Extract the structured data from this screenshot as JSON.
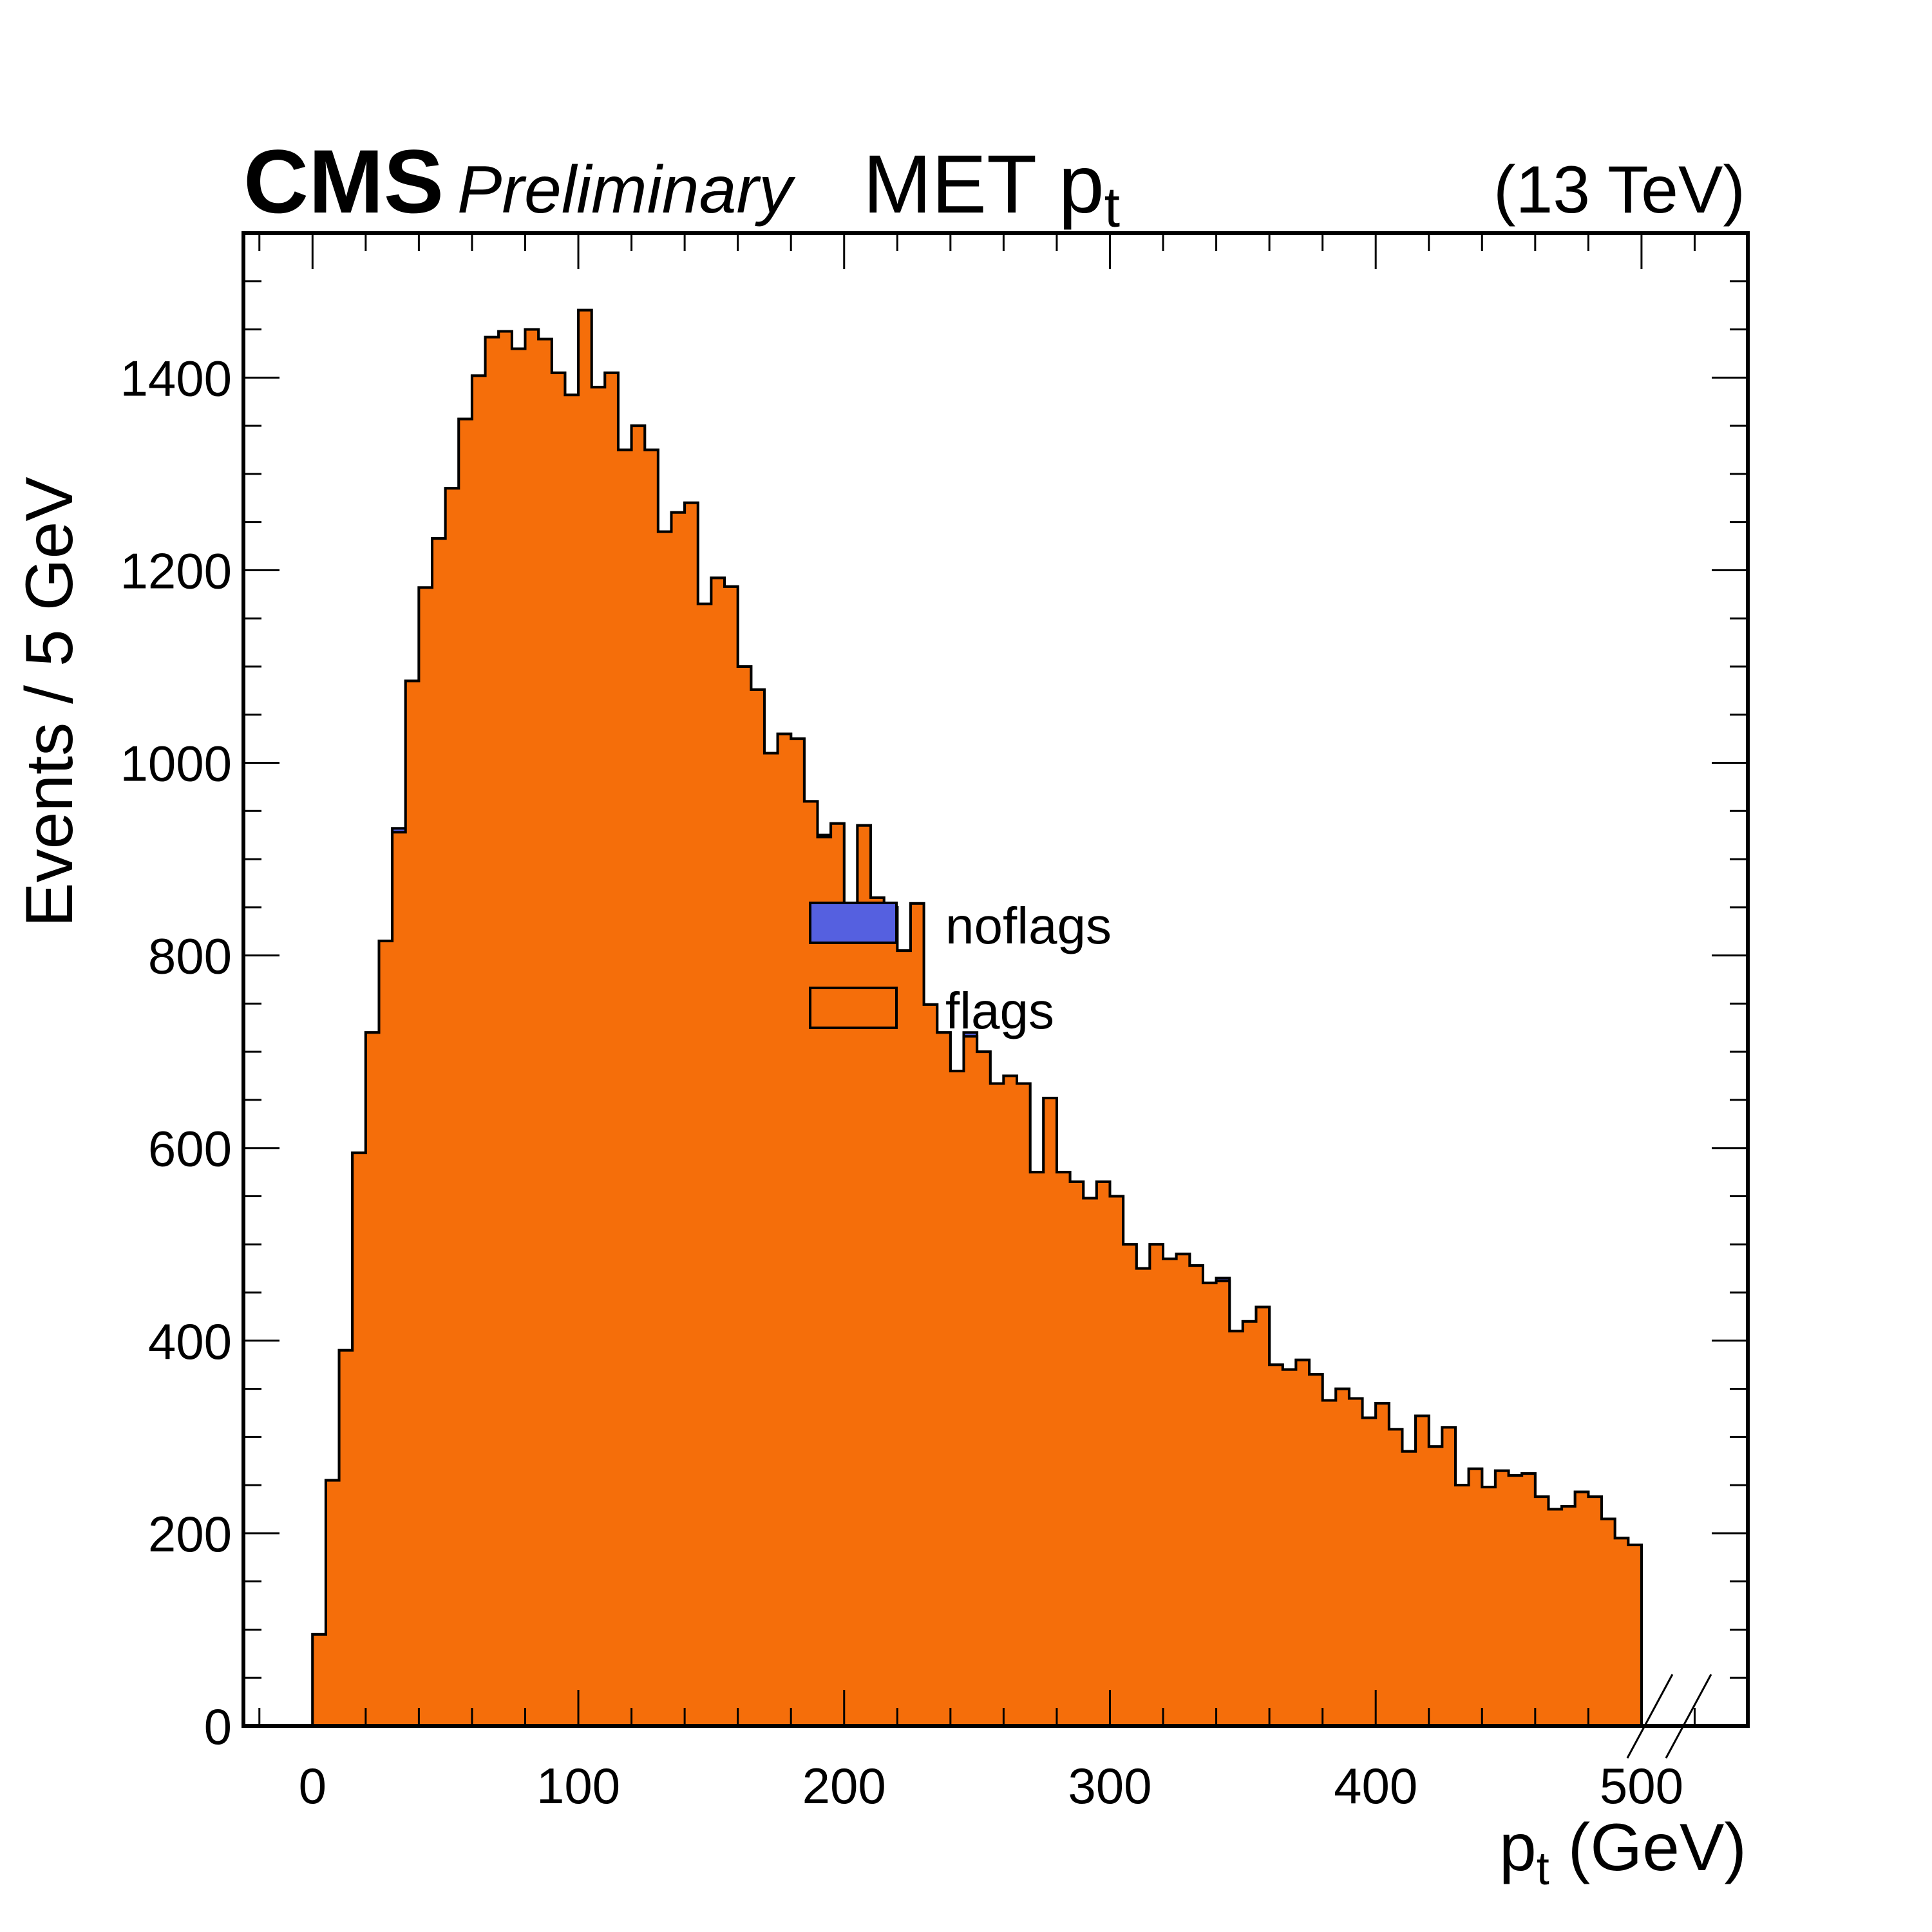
{
  "header": {
    "experiment": "CMS",
    "status": "Preliminary",
    "energy": "(13 TeV)"
  },
  "chart_data": {
    "type": "histogram",
    "title": "MET p_t",
    "title_main": "MET p",
    "title_sub": "t",
    "xlabel": "p_t (GeV)",
    "xlabel_main": "p",
    "xlabel_sub": "t",
    "xlabel_unit": " (GeV)",
    "ylabel": "Events / 5 GeV",
    "xlim": [
      -26,
      540
    ],
    "ylim": [
      0,
      1550
    ],
    "x_ticks": [
      0,
      100,
      200,
      300,
      400,
      500
    ],
    "y_ticks": [
      0,
      200,
      400,
      600,
      800,
      1000,
      1200,
      1400
    ],
    "bin_width": 5,
    "bin_range": [
      0,
      500
    ],
    "overflow_break_marks": true,
    "legend_position": "center",
    "series": [
      {
        "name": "noflags",
        "color": "#5560E0",
        "values": [
          95,
          255,
          390,
          595,
          720,
          815,
          932,
          1085,
          1182,
          1233,
          1285,
          1357,
          1402,
          1442,
          1448,
          1430,
          1450,
          1440,
          1405,
          1382,
          1470,
          1390,
          1405,
          1325,
          1350,
          1325,
          1240,
          1260,
          1270,
          1165,
          1192,
          1183,
          1100,
          1076,
          1010,
          1030,
          1025,
          960,
          925,
          937,
          850,
          935,
          860,
          850,
          805,
          854,
          749,
          720,
          680,
          720,
          700,
          667,
          675,
          667,
          575,
          652,
          575,
          565,
          548,
          565,
          550,
          500,
          475,
          500,
          485,
          490,
          478,
          460,
          465,
          410,
          420,
          435,
          375,
          370,
          380,
          365,
          338,
          350,
          340,
          320,
          335,
          308,
          285,
          322,
          290,
          310,
          250,
          267,
          248,
          265,
          260,
          262,
          238,
          225,
          228,
          243,
          238,
          215,
          195,
          188
        ]
      },
      {
        "name": "flags",
        "color": "#F56E0A",
        "values": [
          95,
          255,
          390,
          595,
          720,
          815,
          928,
          1085,
          1182,
          1233,
          1285,
          1357,
          1402,
          1442,
          1448,
          1430,
          1450,
          1440,
          1405,
          1382,
          1470,
          1390,
          1405,
          1325,
          1350,
          1325,
          1240,
          1260,
          1270,
          1165,
          1192,
          1183,
          1100,
          1076,
          1010,
          1030,
          1025,
          960,
          923,
          937,
          850,
          935,
          860,
          850,
          805,
          854,
          749,
          720,
          680,
          716,
          700,
          667,
          675,
          667,
          575,
          652,
          575,
          565,
          548,
          565,
          550,
          500,
          475,
          500,
          485,
          490,
          478,
          460,
          462,
          410,
          420,
          435,
          375,
          370,
          380,
          365,
          338,
          350,
          340,
          320,
          335,
          308,
          285,
          322,
          290,
          310,
          250,
          267,
          248,
          265,
          260,
          262,
          238,
          225,
          228,
          243,
          238,
          215,
          195,
          188
        ]
      }
    ]
  }
}
